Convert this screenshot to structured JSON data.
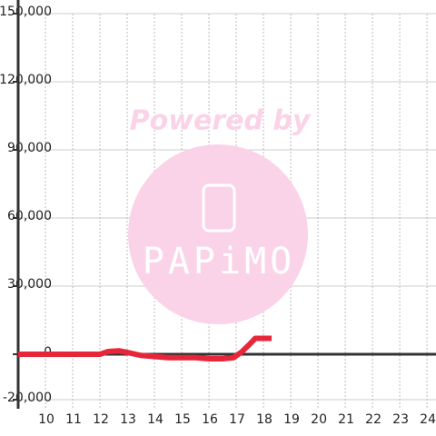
{
  "chart_data": {
    "type": "line",
    "x": [
      9,
      10,
      11,
      11.5,
      12,
      12.3,
      12.7,
      13,
      13.5,
      14,
      14.5,
      15,
      15.5,
      16,
      16.5,
      16.9,
      17.2,
      17.5,
      17.7,
      18,
      18.3
    ],
    "series": [
      {
        "color": "#e8263a",
        "values": [
          0,
          0,
          0,
          0,
          0,
          1200,
          1500,
          800,
          -500,
          -1000,
          -1500,
          -1500,
          -1500,
          -2000,
          -2000,
          -1500,
          1000,
          4500,
          7000,
          7000,
          7000
        ]
      }
    ],
    "xlim": [
      9,
      24.33
    ],
    "xticks": [
      10,
      11,
      12,
      13,
      14,
      15,
      16,
      17,
      18,
      19,
      20,
      21,
      22,
      23,
      24
    ],
    "ylim": [
      -20000,
      150000
    ],
    "yticks": [
      {
        "value": -20000,
        "label": "-20,000"
      },
      0,
      {
        "value": 30000,
        "label": "30,000"
      },
      {
        "value": 60000,
        "label": "60,000"
      },
      {
        "value": 90000,
        "label": "90,000"
      },
      {
        "value": 120000,
        "label": "120,000"
      },
      {
        "value": 150000,
        "label": "150,000"
      }
    ],
    "grid": true,
    "watermark": {
      "line1": "Powered by",
      "line2": "PAPiMO"
    }
  }
}
